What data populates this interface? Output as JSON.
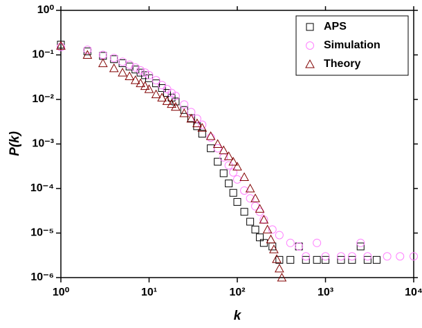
{
  "chart_data": {
    "type": "scatter",
    "xlabel": "k",
    "ylabel": "P(k)",
    "log_x": true,
    "log_y": true,
    "xlim": [
      1,
      10000
    ],
    "ylim": [
      1e-06,
      1
    ],
    "xticks": [
      {
        "value": 1,
        "label": "10⁰"
      },
      {
        "value": 10,
        "label": "10¹"
      },
      {
        "value": 100,
        "label": "10²"
      },
      {
        "value": 1000,
        "label": "10³"
      },
      {
        "value": 10000,
        "label": "10⁴"
      }
    ],
    "yticks": [
      {
        "value": 1e-06,
        "label": "10⁻⁶"
      },
      {
        "value": 1e-05,
        "label": "10⁻⁵"
      },
      {
        "value": 0.0001,
        "label": "10⁻⁴"
      },
      {
        "value": 0.001,
        "label": "10⁻³"
      },
      {
        "value": 0.01,
        "label": "10⁻²"
      },
      {
        "value": 0.1,
        "label": "10⁻¹"
      },
      {
        "value": 1,
        "label": "10⁰"
      }
    ],
    "legend": "upper right",
    "series": [
      {
        "name": "APS",
        "color": "#000000",
        "marker": "square",
        "x": [
          1,
          2,
          3,
          4,
          5,
          6,
          7,
          8,
          9,
          10,
          12,
          14,
          16,
          18,
          20,
          25,
          30,
          35,
          40,
          50,
          60,
          70,
          80,
          90,
          100,
          120,
          140,
          160,
          180,
          200,
          250,
          300,
          400,
          500,
          600,
          800,
          1000,
          1500,
          2000,
          2500,
          3000,
          3800
        ],
        "values": [
          0.17,
          0.12,
          0.095,
          0.08,
          0.065,
          0.055,
          0.047,
          0.04,
          0.035,
          0.03,
          0.023,
          0.018,
          0.014,
          0.011,
          0.009,
          0.0058,
          0.0038,
          0.0025,
          0.0017,
          0.0008,
          0.0004,
          0.00022,
          0.00013,
          8e-05,
          5e-05,
          3e-05,
          1.8e-05,
          1.2e-05,
          8e-06,
          6e-06,
          5e-06,
          2.5e-06,
          2.5e-06,
          5e-06,
          2.5e-06,
          2.5e-06,
          2.5e-06,
          2.5e-06,
          2.5e-06,
          5e-06,
          2.5e-06,
          2.5e-06
        ]
      },
      {
        "name": "Simulation",
        "color": "#ff80ff",
        "marker": "circle",
        "x": [
          1,
          2,
          3,
          4,
          5,
          6,
          7,
          8,
          9,
          10,
          12,
          14,
          16,
          18,
          20,
          25,
          30,
          35,
          40,
          50,
          60,
          70,
          80,
          90,
          100,
          120,
          140,
          160,
          180,
          200,
          250,
          300,
          400,
          500,
          600,
          800,
          1000,
          1500,
          2000,
          2500,
          3000,
          5000,
          7000,
          10000
        ],
        "values": [
          0.15,
          0.13,
          0.1,
          0.085,
          0.07,
          0.06,
          0.052,
          0.045,
          0.04,
          0.035,
          0.027,
          0.021,
          0.017,
          0.014,
          0.012,
          0.0077,
          0.0052,
          0.0037,
          0.0027,
          0.0014,
          0.0008,
          0.0005,
          0.00033,
          0.00023,
          0.00016,
          9e-05,
          6e-05,
          4e-05,
          3e-05,
          2e-05,
          1.2e-05,
          9e-06,
          6e-06,
          5e-06,
          3e-06,
          6e-06,
          3e-06,
          3e-06,
          3e-06,
          6e-06,
          3e-06,
          3e-06,
          3e-06,
          3e-06
        ]
      },
      {
        "name": "Theory",
        "color": "#800000",
        "marker": "triangle",
        "x": [
          1,
          2,
          3,
          4,
          5,
          6,
          7,
          8,
          9,
          10,
          12,
          14,
          16,
          18,
          20,
          25,
          30,
          35,
          40,
          50,
          60,
          70,
          80,
          90,
          100,
          120,
          140,
          160,
          180,
          200,
          220,
          240,
          260,
          280,
          300,
          320
        ],
        "values": [
          0.16,
          0.1,
          0.065,
          0.05,
          0.04,
          0.033,
          0.027,
          0.023,
          0.02,
          0.017,
          0.013,
          0.011,
          0.0092,
          0.0079,
          0.0068,
          0.0049,
          0.0037,
          0.0029,
          0.0023,
          0.0015,
          0.001,
          0.00072,
          0.00053,
          0.0004,
          0.00031,
          0.00018,
          0.0001,
          6e-05,
          3.5e-05,
          2e-05,
          1.2e-05,
          7.2e-06,
          4.3e-06,
          2.6e-06,
          1.6e-06,
          1e-06
        ]
      }
    ]
  }
}
